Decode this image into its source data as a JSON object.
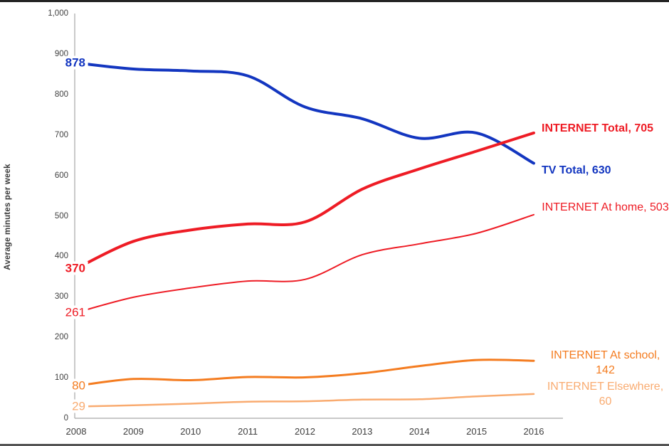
{
  "chart_data": {
    "type": "line",
    "title": "",
    "xlabel": "",
    "ylabel": "Average minutes per week",
    "ylim": [
      0,
      1000
    ],
    "ytick_labels": [
      "0",
      "100",
      "200",
      "300",
      "400",
      "500",
      "600",
      "700",
      "800",
      "900",
      "1,000"
    ],
    "x": [
      "2008",
      "2009",
      "2010",
      "2011",
      "2012",
      "2013",
      "2014",
      "2015",
      "2016"
    ],
    "grid": false,
    "legend_position": "inline-end-labels",
    "smooth_lines": true,
    "series": [
      {
        "name": "TV Total",
        "color": "#1336c0",
        "thickness": 4,
        "bold": true,
        "start_label": "878",
        "end_label": "TV Total, 630",
        "values": [
          878,
          863,
          858,
          846,
          769,
          740,
          692,
          705,
          630
        ]
      },
      {
        "name": "INTERNET Total",
        "color": "#ee1c25",
        "thickness": 4,
        "bold": true,
        "start_label": "370",
        "end_label": "INTERNET Total, 705",
        "values": [
          370,
          437,
          465,
          480,
          485,
          566,
          616,
          660,
          705
        ]
      },
      {
        "name": "INTERNET At home",
        "color": "#ee1c25",
        "thickness": 2,
        "bold": false,
        "start_label": "261",
        "end_label": "INTERNET At home, 503",
        "values": [
          261,
          299,
          322,
          339,
          343,
          404,
          431,
          457,
          503
        ]
      },
      {
        "name": "INTERNET At school",
        "color": "#f47c20",
        "thickness": 3,
        "bold": false,
        "start_label": "80",
        "end_label": "INTERNET At school, 142",
        "values": [
          80,
          97,
          94,
          102,
          101,
          111,
          129,
          144,
          142
        ]
      },
      {
        "name": "INTERNET Elsewhere",
        "color": "#f9ab70",
        "thickness": 2.5,
        "bold": false,
        "start_label": "29",
        "end_label": "INTERNET Elsewhere, 60",
        "values": [
          29,
          32,
          36,
          41,
          42,
          46,
          47,
          54,
          60
        ]
      }
    ]
  }
}
